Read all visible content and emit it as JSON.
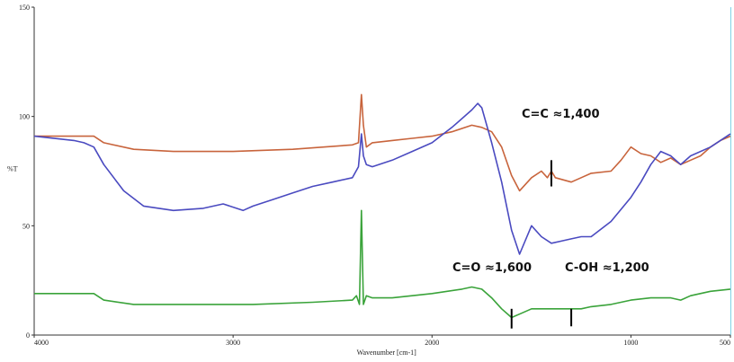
{
  "chart_data": {
    "type": "line",
    "title": "",
    "xlabel": "Wavenumber [cm-1]",
    "ylabel": "%T",
    "xlim": [
      4000,
      500
    ],
    "ylim": [
      0,
      150
    ],
    "x_ticks": [
      {
        "value": 4000,
        "label": "4000"
      },
      {
        "value": 3000,
        "label": "3000"
      },
      {
        "value": 2000,
        "label": "2000"
      },
      {
        "value": 1000,
        "label": "1000"
      },
      {
        "value": 500,
        "label": "500"
      }
    ],
    "y_ticks": [
      {
        "value": 150,
        "label": "150"
      },
      {
        "value": 100,
        "label": "100"
      },
      {
        "value": 50,
        "label": "50"
      },
      {
        "value": 0,
        "label": "0"
      }
    ],
    "series": [
      {
        "color": "#c8643c",
        "points": [
          [
            4000,
            91
          ],
          [
            3800,
            91
          ],
          [
            3700,
            91
          ],
          [
            3650,
            88
          ],
          [
            3500,
            85
          ],
          [
            3300,
            84
          ],
          [
            3000,
            84
          ],
          [
            2700,
            85
          ],
          [
            2400,
            87
          ],
          [
            2370,
            88
          ],
          [
            2355,
            110
          ],
          [
            2345,
            96
          ],
          [
            2330,
            86
          ],
          [
            2300,
            88
          ],
          [
            2200,
            89
          ],
          [
            2100,
            90
          ],
          [
            2000,
            91
          ],
          [
            1900,
            93
          ],
          [
            1800,
            96
          ],
          [
            1750,
            95
          ],
          [
            1700,
            93
          ],
          [
            1650,
            86
          ],
          [
            1600,
            73
          ],
          [
            1560,
            66
          ],
          [
            1500,
            72
          ],
          [
            1450,
            75
          ],
          [
            1420,
            72
          ],
          [
            1400,
            75
          ],
          [
            1380,
            72
          ],
          [
            1300,
            70
          ],
          [
            1250,
            72
          ],
          [
            1200,
            74
          ],
          [
            1100,
            75
          ],
          [
            1050,
            80
          ],
          [
            1000,
            86
          ],
          [
            950,
            83
          ],
          [
            900,
            82
          ],
          [
            850,
            79
          ],
          [
            800,
            81
          ],
          [
            750,
            78
          ],
          [
            700,
            80
          ],
          [
            650,
            82
          ],
          [
            600,
            86
          ],
          [
            550,
            89
          ],
          [
            500,
            91
          ]
        ]
      },
      {
        "color": "#4a4ac0",
        "points": [
          [
            4000,
            91
          ],
          [
            3800,
            89
          ],
          [
            3750,
            88
          ],
          [
            3700,
            86
          ],
          [
            3650,
            78
          ],
          [
            3550,
            66
          ],
          [
            3450,
            59
          ],
          [
            3300,
            57
          ],
          [
            3150,
            58
          ],
          [
            3050,
            60
          ],
          [
            2950,
            57
          ],
          [
            2900,
            59
          ],
          [
            2800,
            62
          ],
          [
            2700,
            65
          ],
          [
            2600,
            68
          ],
          [
            2500,
            70
          ],
          [
            2400,
            72
          ],
          [
            2370,
            77
          ],
          [
            2355,
            92
          ],
          [
            2345,
            82
          ],
          [
            2330,
            78
          ],
          [
            2300,
            77
          ],
          [
            2200,
            80
          ],
          [
            2100,
            84
          ],
          [
            2000,
            88
          ],
          [
            1900,
            95
          ],
          [
            1800,
            103
          ],
          [
            1770,
            106
          ],
          [
            1750,
            104
          ],
          [
            1700,
            88
          ],
          [
            1650,
            70
          ],
          [
            1600,
            48
          ],
          [
            1560,
            37
          ],
          [
            1500,
            50
          ],
          [
            1450,
            45
          ],
          [
            1400,
            42
          ],
          [
            1350,
            43
          ],
          [
            1300,
            44
          ],
          [
            1250,
            45
          ],
          [
            1200,
            45
          ],
          [
            1100,
            52
          ],
          [
            1000,
            63
          ],
          [
            950,
            70
          ],
          [
            900,
            78
          ],
          [
            850,
            84
          ],
          [
            800,
            82
          ],
          [
            750,
            78
          ],
          [
            700,
            82
          ],
          [
            600,
            86
          ],
          [
            500,
            92
          ]
        ]
      },
      {
        "color": "#3aa33a",
        "points": [
          [
            4000,
            19
          ],
          [
            3800,
            19
          ],
          [
            3700,
            19
          ],
          [
            3650,
            16
          ],
          [
            3500,
            14
          ],
          [
            3200,
            14
          ],
          [
            2900,
            14
          ],
          [
            2600,
            15
          ],
          [
            2400,
            16
          ],
          [
            2380,
            18
          ],
          [
            2365,
            14
          ],
          [
            2355,
            57
          ],
          [
            2345,
            14
          ],
          [
            2330,
            18
          ],
          [
            2300,
            17
          ],
          [
            2200,
            17
          ],
          [
            2000,
            19
          ],
          [
            1850,
            21
          ],
          [
            1800,
            22
          ],
          [
            1750,
            21
          ],
          [
            1700,
            17
          ],
          [
            1650,
            12
          ],
          [
            1600,
            8
          ],
          [
            1550,
            10
          ],
          [
            1500,
            12
          ],
          [
            1400,
            12
          ],
          [
            1300,
            12
          ],
          [
            1250,
            12
          ],
          [
            1200,
            13
          ],
          [
            1100,
            14
          ],
          [
            1000,
            16
          ],
          [
            900,
            17
          ],
          [
            800,
            17
          ],
          [
            750,
            16
          ],
          [
            700,
            18
          ],
          [
            600,
            20
          ],
          [
            500,
            21
          ]
        ]
      }
    ],
    "annotations": [
      {
        "text": "C=C ≈1,400"
      },
      {
        "text": "C=O ≈1,600"
      },
      {
        "text": "C-OH ≈1,200"
      }
    ],
    "markers": [
      {
        "x": 1400,
        "y_from": 80,
        "y_to": 68
      },
      {
        "x": 1600,
        "y_from": 12,
        "y_to": 3
      },
      {
        "x": 1300,
        "y_from": 12,
        "y_to": 4
      }
    ],
    "grid": false
  }
}
